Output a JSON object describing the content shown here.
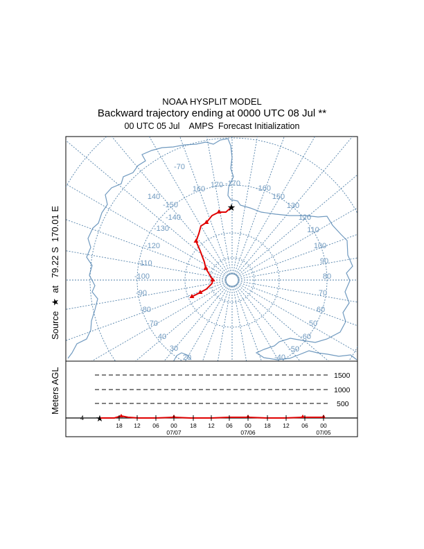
{
  "title": {
    "line1": "NOAA HYSPLIT MODEL",
    "line2": "Backward trajectory ending at 0000 UTC 08 Jul **",
    "line3": "00 UTC 05 Jul    AMPS  Forecast Initialization"
  },
  "source_label": "Source  ★  at   79.22 S  170.01 E",
  "map": {
    "longitude_labels": [
      "-70",
      "160",
      "170",
      "-170",
      "-160",
      "150",
      "140",
      "-150",
      "130",
      "-140",
      "120",
      "-130",
      "110",
      "-120",
      "100",
      "-110",
      "90",
      "-100",
      "80",
      "-90",
      "70",
      "-80",
      "60",
      "-70",
      "50",
      "40",
      "-60",
      "30",
      "-50",
      "20",
      "-40"
    ],
    "colors": {
      "coastline": "#6f99bf",
      "grid": "#4f7fa8",
      "trajectory": "#e00000",
      "label": "#6f99bf"
    }
  },
  "vertical_panel": {
    "y_label": "Meters AGL",
    "height_ticks": [
      "1500",
      "1000",
      "500"
    ],
    "start_marker_label": "4",
    "hour_ticks": [
      "18",
      "12",
      "06",
      "00",
      "18",
      "12",
      "06",
      "00",
      "18",
      "12",
      "06",
      "00"
    ],
    "date_labels": [
      "07/07",
      "07/06",
      "07/05"
    ]
  }
}
